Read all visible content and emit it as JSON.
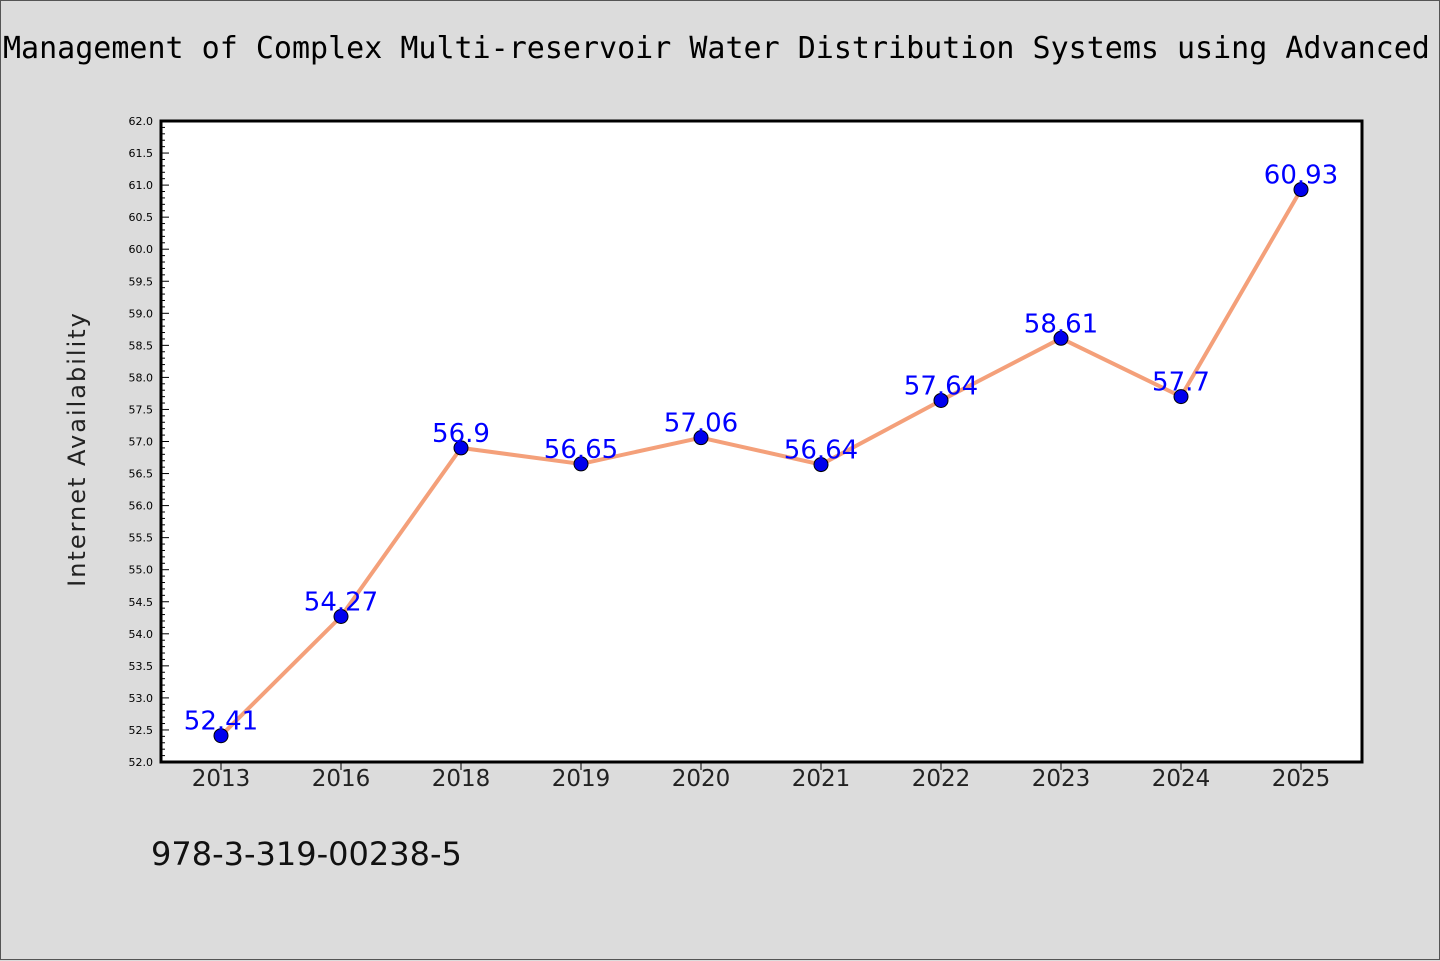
{
  "chart_data": {
    "type": "line",
    "title": "Management of Complex Multi-reservoir Water Distribution Systems using Advanced",
    "xlabel": "",
    "ylabel": "Internet Availability",
    "categories": [
      "2013",
      "2016",
      "2018",
      "2019",
      "2020",
      "2021",
      "2022",
      "2023",
      "2024",
      "2025"
    ],
    "series": [
      {
        "values": [
          52.41,
          54.27,
          56.9,
          56.65,
          57.06,
          56.64,
          57.64,
          58.61,
          57.7,
          60.93
        ],
        "labels": [
          "52.41",
          "54.27",
          "56.9",
          "56.65",
          "57.06",
          "56.64",
          "57.64",
          "58.61",
          "57.7",
          "60.93"
        ],
        "line_color": "#f4a07a",
        "marker_color": "#0000ee",
        "label_color": "#0000ff"
      }
    ],
    "ylim": [
      52.0,
      62.0
    ],
    "ytick_step": 0.5,
    "grid": false,
    "legend": "none"
  },
  "footer": {
    "isbn": "978-3-319-00238-5"
  }
}
